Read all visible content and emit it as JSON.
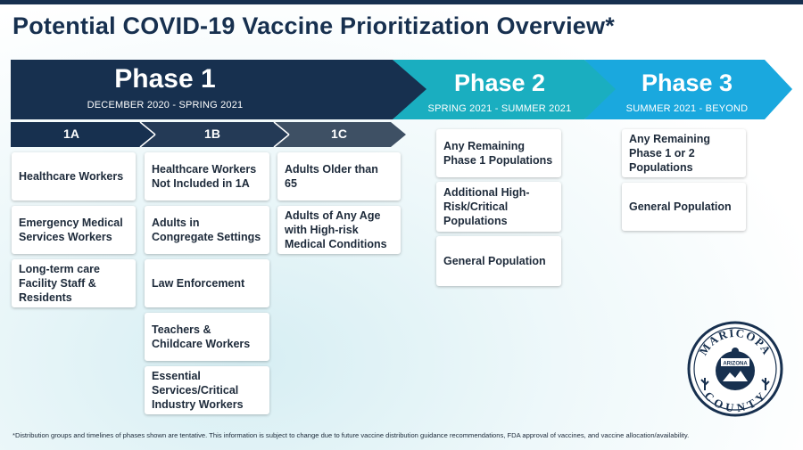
{
  "title": "Potential COVID-19 Vaccine Prioritization Overview*",
  "colors": {
    "navy": "#17304f",
    "teal": "#1aaec0",
    "blue": "#1aa8de",
    "slate": "#3e5064"
  },
  "phases": [
    {
      "name": "Phase 1",
      "dates": "DECEMBER 2020 - SPRING 2021"
    },
    {
      "name": "Phase 2",
      "dates": "SPRING 2021 - SUMMER 2021"
    },
    {
      "name": "Phase 3",
      "dates": "SUMMER 2021 - BEYOND"
    }
  ],
  "subphases": [
    "1A",
    "1B",
    "1C"
  ],
  "groups": {
    "1A": [
      "Healthcare Workers",
      "Emergency Medical Services Workers",
      "Long-term care Facility Staff & Residents"
    ],
    "1B": [
      "Healthcare Workers Not Included in 1A",
      "Adults in Congregate Settings",
      "Law Enforcement",
      "Teachers & Childcare Workers",
      "Essential Services/Critical Industry Workers"
    ],
    "1C": [
      "Adults Older than 65",
      "Adults of Any Age with High-risk Medical Conditions"
    ],
    "phase2": [
      "Any Remaining Phase 1 Populations",
      "Additional High-Risk/Critical Populations",
      "General Population"
    ],
    "phase3": [
      "Any Remaining Phase 1 or 2 Populations",
      "General Population"
    ]
  },
  "seal": {
    "top": "MARICOPA",
    "bottom": "COUNTY",
    "center": "ARIZONA"
  },
  "footnote": "*Distribution groups and timelines of phases shown are tentative. This information is subject to change due to future vaccine distribution guidance recommendations, FDA approval of vaccines, and vaccine allocation/availability."
}
